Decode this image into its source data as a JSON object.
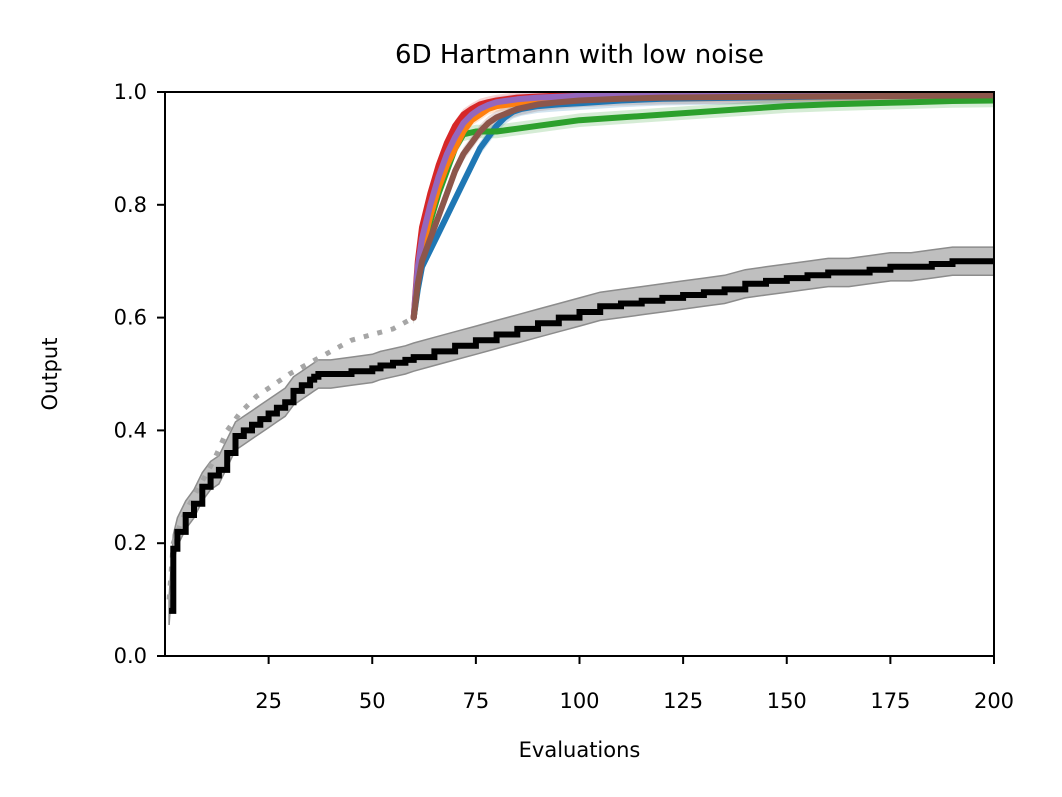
{
  "chart_data": {
    "type": "line",
    "title": "6D Hartmann with low noise",
    "xlabel": "Evaluations",
    "ylabel": "Output",
    "xlim": [
      0,
      200
    ],
    "ylim": [
      0.0,
      1.0
    ],
    "xticks": [
      25,
      50,
      75,
      100,
      125,
      150,
      175,
      200
    ],
    "xtick_labels": [
      "25",
      "50",
      "75",
      "100",
      "125",
      "150",
      "175",
      "200"
    ],
    "yticks": [
      0.0,
      0.2,
      0.4,
      0.6,
      0.8,
      1.0
    ],
    "ytick_labels": [
      "0.0",
      "0.2",
      "0.4",
      "0.6",
      "0.8",
      "1.0"
    ],
    "grid": false,
    "series": [
      {
        "name": "initial-mean",
        "color": "#a6a6a6",
        "style": "dotted",
        "x": [
          1,
          2,
          4,
          6,
          9,
          12,
          15,
          18,
          22,
          26,
          30,
          35,
          40,
          45,
          50,
          55,
          60
        ],
        "y": [
          0.1,
          0.2,
          0.24,
          0.27,
          0.31,
          0.35,
          0.4,
          0.43,
          0.46,
          0.48,
          0.5,
          0.52,
          0.54,
          0.56,
          0.57,
          0.58,
          0.6
        ]
      },
      {
        "name": "black",
        "color": "#000000",
        "band": 0.025,
        "x": [
          1,
          2,
          3,
          5,
          7,
          9,
          11,
          13,
          15,
          17,
          19,
          21,
          23,
          25,
          27,
          29,
          31,
          33,
          35,
          36,
          37,
          40,
          45,
          50,
          52,
          55,
          58,
          60,
          65,
          70,
          75,
          80,
          85,
          90,
          95,
          100,
          105,
          110,
          115,
          120,
          125,
          130,
          135,
          140,
          145,
          150,
          155,
          160,
          165,
          170,
          175,
          180,
          185,
          190,
          195,
          200
        ],
        "y": [
          0.08,
          0.19,
          0.22,
          0.25,
          0.27,
          0.3,
          0.32,
          0.33,
          0.36,
          0.39,
          0.4,
          0.41,
          0.42,
          0.43,
          0.44,
          0.45,
          0.47,
          0.48,
          0.49,
          0.495,
          0.5,
          0.5,
          0.505,
          0.51,
          0.515,
          0.52,
          0.525,
          0.53,
          0.54,
          0.55,
          0.56,
          0.57,
          0.58,
          0.59,
          0.6,
          0.61,
          0.62,
          0.625,
          0.63,
          0.635,
          0.64,
          0.645,
          0.65,
          0.66,
          0.665,
          0.67,
          0.675,
          0.68,
          0.68,
          0.685,
          0.69,
          0.69,
          0.695,
          0.7,
          0.7,
          0.7
        ]
      },
      {
        "name": "blue",
        "color": "#1f77b4",
        "band": 0.012,
        "x": [
          60,
          61,
          62,
          64,
          66,
          68,
          70,
          72,
          74,
          76,
          78,
          80,
          82,
          84,
          86,
          90,
          95,
          100,
          110,
          120,
          140,
          160,
          200
        ],
        "y": [
          0.6,
          0.65,
          0.69,
          0.72,
          0.75,
          0.78,
          0.81,
          0.84,
          0.87,
          0.9,
          0.92,
          0.94,
          0.955,
          0.965,
          0.97,
          0.975,
          0.978,
          0.98,
          0.985,
          0.988,
          0.99,
          0.992,
          0.995
        ]
      },
      {
        "name": "green",
        "color": "#2ca02c",
        "band": 0.012,
        "x": [
          60,
          61,
          62,
          64,
          66,
          68,
          70,
          72,
          75,
          80,
          85,
          90,
          95,
          100,
          110,
          120,
          130,
          140,
          150,
          160,
          170,
          180,
          190,
          200
        ],
        "y": [
          0.6,
          0.66,
          0.72,
          0.77,
          0.82,
          0.86,
          0.9,
          0.925,
          0.93,
          0.93,
          0.935,
          0.94,
          0.945,
          0.95,
          0.955,
          0.96,
          0.965,
          0.97,
          0.975,
          0.978,
          0.98,
          0.982,
          0.984,
          0.985
        ]
      },
      {
        "name": "orange",
        "color": "#ff7f0e",
        "band": 0.01,
        "x": [
          60,
          61,
          62,
          64,
          66,
          68,
          70,
          72,
          74,
          76,
          78,
          80,
          85,
          90,
          100,
          120,
          150,
          200
        ],
        "y": [
          0.6,
          0.67,
          0.72,
          0.78,
          0.83,
          0.87,
          0.9,
          0.93,
          0.95,
          0.96,
          0.97,
          0.975,
          0.98,
          0.985,
          0.99,
          0.992,
          0.994,
          0.995
        ]
      },
      {
        "name": "red",
        "color": "#d62728",
        "band": 0.01,
        "x": [
          60,
          61,
          62,
          64,
          66,
          68,
          70,
          72,
          74,
          76,
          78,
          80,
          85,
          90,
          100,
          120,
          150,
          200
        ],
        "y": [
          0.6,
          0.7,
          0.76,
          0.82,
          0.87,
          0.91,
          0.94,
          0.96,
          0.97,
          0.978,
          0.982,
          0.985,
          0.99,
          0.992,
          0.995,
          0.996,
          0.997,
          0.998
        ]
      },
      {
        "name": "purple",
        "color": "#9467bd",
        "band": 0.01,
        "x": [
          60,
          61,
          62,
          64,
          66,
          68,
          70,
          72,
          74,
          76,
          78,
          80,
          85,
          90,
          100,
          120,
          150,
          200
        ],
        "y": [
          0.6,
          0.69,
          0.74,
          0.8,
          0.85,
          0.89,
          0.92,
          0.945,
          0.96,
          0.97,
          0.977,
          0.982,
          0.987,
          0.99,
          0.993,
          0.995,
          0.996,
          0.997
        ]
      },
      {
        "name": "brown",
        "color": "#8c564b",
        "band": 0.012,
        "x": [
          60,
          61,
          62,
          64,
          66,
          68,
          70,
          72,
          74,
          76,
          78,
          80,
          85,
          90,
          95,
          100,
          110,
          120,
          150,
          200
        ],
        "y": [
          0.6,
          0.66,
          0.7,
          0.74,
          0.78,
          0.82,
          0.86,
          0.89,
          0.91,
          0.93,
          0.945,
          0.955,
          0.97,
          0.978,
          0.982,
          0.985,
          0.988,
          0.99,
          0.992,
          0.994
        ]
      }
    ]
  }
}
